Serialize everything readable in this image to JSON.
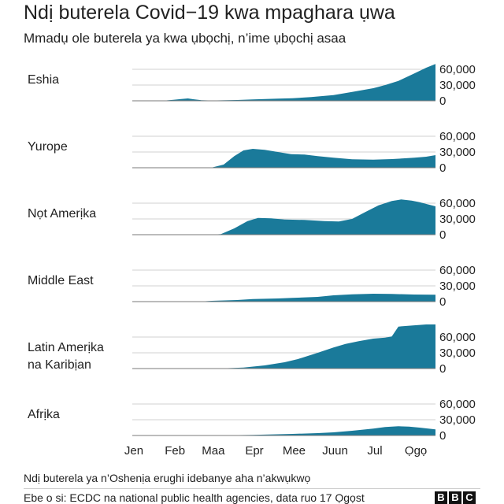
{
  "title": "Ndị buterela Covid−19 kwa mpaghara ụwa",
  "subtitle": "Mmadụ ole buterela ya kwa ụbọchị, n’ime ụbọchị asaa",
  "note": "Ndị buterela ya n’Oshenịa erughi idebanye aha n’akwụkwọ",
  "source": "Ebe o si: ECDC na national public health agencies, data ruo 17 Ọgọst",
  "logo": [
    "B",
    "B",
    "C"
  ],
  "colors": {
    "area": "#1a7a9a",
    "grid": "#d2d2d2",
    "baseline": "#7a7a7a",
    "text": "#222222"
  },
  "chart_data": {
    "type": "area",
    "ylim": [
      0,
      75000
    ],
    "yticks": [
      {
        "value": 0,
        "label": "0"
      },
      {
        "value": 30000,
        "label": "30,000"
      },
      {
        "value": 60000,
        "label": "60,000"
      }
    ],
    "xlim": [
      "2020-01-01",
      "2020-08-17"
    ],
    "xticks": [
      {
        "date": "2020-01-01",
        "label": "Jen"
      },
      {
        "date": "2020-02-01",
        "label": "Feb"
      },
      {
        "date": "2020-03-01",
        "label": "Maa"
      },
      {
        "date": "2020-04-01",
        "label": "Epr"
      },
      {
        "date": "2020-05-01",
        "label": "Mee"
      },
      {
        "date": "2020-06-01",
        "label": "Juun"
      },
      {
        "date": "2020-07-01",
        "label": "Jul"
      },
      {
        "date": "2020-08-01",
        "label": "Ọgọ"
      }
    ],
    "series": [
      {
        "name": "Eshia",
        "label_lines": [
          "Eshia"
        ],
        "points": [
          [
            "2020-01-15",
            0
          ],
          [
            "2020-01-25",
            500
          ],
          [
            "2020-02-01",
            2000
          ],
          [
            "2020-02-07",
            3500
          ],
          [
            "2020-02-12",
            4500
          ],
          [
            "2020-02-16",
            3000
          ],
          [
            "2020-02-22",
            1200
          ],
          [
            "2020-03-01",
            600
          ],
          [
            "2020-03-20",
            1500
          ],
          [
            "2020-04-01",
            2500
          ],
          [
            "2020-04-20",
            4000
          ],
          [
            "2020-05-01",
            5000
          ],
          [
            "2020-05-15",
            7000
          ],
          [
            "2020-06-01",
            11000
          ],
          [
            "2020-06-15",
            17000
          ],
          [
            "2020-07-01",
            24000
          ],
          [
            "2020-07-10",
            30000
          ],
          [
            "2020-07-20",
            38000
          ],
          [
            "2020-08-01",
            52000
          ],
          [
            "2020-08-10",
            63000
          ],
          [
            "2020-08-17",
            70000
          ]
        ]
      },
      {
        "name": "Yurope",
        "label_lines": [
          "Yurope"
        ],
        "points": [
          [
            "2020-02-20",
            0
          ],
          [
            "2020-03-01",
            300
          ],
          [
            "2020-03-10",
            6000
          ],
          [
            "2020-03-18",
            22000
          ],
          [
            "2020-03-25",
            33000
          ],
          [
            "2020-04-01",
            36000
          ],
          [
            "2020-04-10",
            34000
          ],
          [
            "2020-04-20",
            30000
          ],
          [
            "2020-04-30",
            26000
          ],
          [
            "2020-05-10",
            25000
          ],
          [
            "2020-05-20",
            22000
          ],
          [
            "2020-06-01",
            19000
          ],
          [
            "2020-06-15",
            16000
          ],
          [
            "2020-07-01",
            15500
          ],
          [
            "2020-07-15",
            16500
          ],
          [
            "2020-08-01",
            19000
          ],
          [
            "2020-08-10",
            21000
          ],
          [
            "2020-08-17",
            24000
          ]
        ]
      },
      {
        "name": "Nọt Amerịka",
        "label_lines": [
          "Nọt Amerịka"
        ],
        "points": [
          [
            "2020-03-01",
            0
          ],
          [
            "2020-03-08",
            1000
          ],
          [
            "2020-03-18",
            12000
          ],
          [
            "2020-03-28",
            26000
          ],
          [
            "2020-04-05",
            32000
          ],
          [
            "2020-04-15",
            31000
          ],
          [
            "2020-04-25",
            29000
          ],
          [
            "2020-05-10",
            28000
          ],
          [
            "2020-05-25",
            26000
          ],
          [
            "2020-06-05",
            25000
          ],
          [
            "2020-06-15",
            30000
          ],
          [
            "2020-06-25",
            43000
          ],
          [
            "2020-07-05",
            56000
          ],
          [
            "2020-07-15",
            64000
          ],
          [
            "2020-07-22",
            67000
          ],
          [
            "2020-07-30",
            65000
          ],
          [
            "2020-08-05",
            62000
          ],
          [
            "2020-08-17",
            54000
          ]
        ]
      },
      {
        "name": "Middle East",
        "label_lines": [
          "Middle East"
        ],
        "points": [
          [
            "2020-02-20",
            0
          ],
          [
            "2020-03-01",
            1500
          ],
          [
            "2020-03-20",
            3000
          ],
          [
            "2020-04-01",
            5000
          ],
          [
            "2020-04-20",
            6000
          ],
          [
            "2020-05-01",
            7000
          ],
          [
            "2020-05-20",
            9000
          ],
          [
            "2020-06-01",
            12000
          ],
          [
            "2020-06-15",
            14000
          ],
          [
            "2020-07-01",
            15000
          ],
          [
            "2020-07-15",
            14500
          ],
          [
            "2020-08-01",
            13500
          ],
          [
            "2020-08-17",
            13000
          ]
        ]
      },
      {
        "name": "Latin Amerịka na Karibịan",
        "label_lines": [
          "Latin Amerịka",
          "na Karibịan"
        ],
        "points": [
          [
            "2020-03-05",
            0
          ],
          [
            "2020-03-25",
            2000
          ],
          [
            "2020-04-10",
            6000
          ],
          [
            "2020-04-25",
            12000
          ],
          [
            "2020-05-05",
            18000
          ],
          [
            "2020-05-20",
            30000
          ],
          [
            "2020-06-01",
            40000
          ],
          [
            "2020-06-10",
            47000
          ],
          [
            "2020-06-20",
            52000
          ],
          [
            "2020-07-01",
            57000
          ],
          [
            "2020-07-10",
            59000
          ],
          [
            "2020-07-15",
            61000
          ],
          [
            "2020-07-20",
            80000
          ],
          [
            "2020-07-31",
            82000
          ],
          [
            "2020-08-10",
            84000
          ],
          [
            "2020-08-17",
            86000
          ]
        ]
      },
      {
        "name": "Afrịka",
        "label_lines": [
          "Afrịka"
        ],
        "points": [
          [
            "2020-03-01",
            0
          ],
          [
            "2020-04-01",
            1000
          ],
          [
            "2020-05-01",
            3000
          ],
          [
            "2020-05-20",
            4500
          ],
          [
            "2020-06-01",
            6000
          ],
          [
            "2020-06-15",
            9000
          ],
          [
            "2020-07-01",
            13000
          ],
          [
            "2020-07-10",
            16000
          ],
          [
            "2020-07-20",
            17500
          ],
          [
            "2020-07-28",
            17000
          ],
          [
            "2020-08-05",
            15000
          ],
          [
            "2020-08-17",
            11500
          ]
        ]
      }
    ]
  }
}
